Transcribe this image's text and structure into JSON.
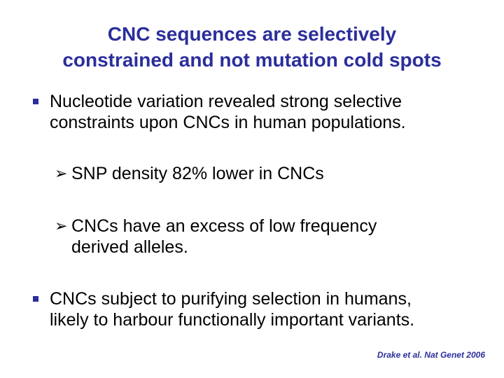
{
  "title": {
    "line1": "CNC sequences are selectively",
    "line2": "constrained and not mutation cold spots"
  },
  "bullets": [
    {
      "line1": "Nucleotide variation revealed strong selective",
      "line2": "constraints upon CNCs in human populations."
    },
    {
      "line1": "CNCs subject to purifying selection in humans,",
      "line2": "likely to harbour functionally important variants."
    }
  ],
  "sub_bullets": [
    {
      "line1": "SNP density 82% lower in CNCs"
    },
    {
      "line1": "CNCs have an excess of low frequency",
      "line2": "derived alleles."
    }
  ],
  "citation": "Drake et al. Nat Genet 2006",
  "colors": {
    "accent": "#2b2e9b"
  },
  "icons": {
    "bullet": "square-bullet-icon",
    "sub_bullet": "arrow-bullet-icon"
  }
}
